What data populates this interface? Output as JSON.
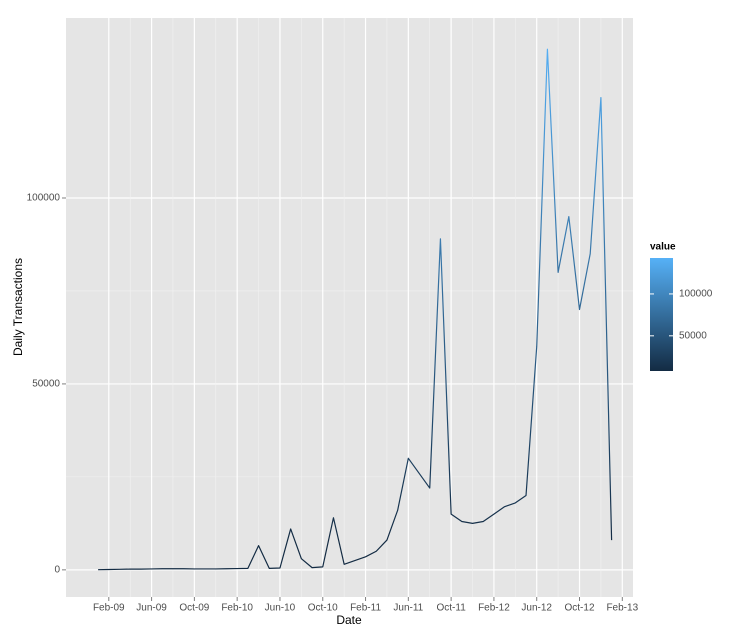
{
  "chart_data": {
    "type": "line",
    "x_label": "Date",
    "y_label": "Daily Transactions",
    "x": [
      "2009-01",
      "2009-02",
      "2009-03",
      "2009-04",
      "2009-05",
      "2009-06",
      "2009-07",
      "2009-08",
      "2009-09",
      "2009-10",
      "2009-11",
      "2009-12",
      "2010-01",
      "2010-02",
      "2010-03",
      "2010-04",
      "2010-05",
      "2010-06",
      "2010-07",
      "2010-08",
      "2010-09",
      "2010-10",
      "2010-11",
      "2010-12",
      "2011-01",
      "2011-02",
      "2011-03",
      "2011-04",
      "2011-05",
      "2011-06",
      "2011-07",
      "2011-08",
      "2011-09",
      "2011-10",
      "2011-11",
      "2011-12",
      "2012-01",
      "2012-02",
      "2012-03",
      "2012-04",
      "2012-05",
      "2012-06",
      "2012-07",
      "2012-08",
      "2012-09",
      "2012-10",
      "2012-11",
      "2012-12",
      "2013-01"
    ],
    "values": [
      50,
      100,
      150,
      200,
      200,
      250,
      300,
      300,
      300,
      250,
      250,
      250,
      300,
      350,
      400,
      6500,
      400,
      500,
      11000,
      3000,
      600,
      800,
      14000,
      1500,
      2500,
      3500,
      5000,
      8000,
      16000,
      30000,
      26000,
      22000,
      89000,
      15000,
      13000,
      12500,
      13000,
      15000,
      17000,
      18000,
      20000,
      60000,
      140000,
      80000,
      95000,
      70000,
      85000,
      127000,
      8000
    ],
    "xlim": [
      "2008-10",
      "2013-03"
    ],
    "xticks": [
      {
        "value": "2009-02",
        "label": "Feb-09"
      },
      {
        "value": "2009-06",
        "label": "Jun-09"
      },
      {
        "value": "2009-10",
        "label": "Oct-09"
      },
      {
        "value": "2010-02",
        "label": "Feb-10"
      },
      {
        "value": "2010-06",
        "label": "Jun-10"
      },
      {
        "value": "2010-10",
        "label": "Oct-10"
      },
      {
        "value": "2011-02",
        "label": "Feb-11"
      },
      {
        "value": "2011-06",
        "label": "Jun-11"
      },
      {
        "value": "2011-10",
        "label": "Oct-11"
      },
      {
        "value": "2012-02",
        "label": "Feb-12"
      },
      {
        "value": "2012-06",
        "label": "Jun-12"
      },
      {
        "value": "2012-10",
        "label": "Oct-12"
      },
      {
        "value": "2013-02",
        "label": "Feb-13"
      }
    ],
    "ylim": [
      -7300,
      148400
    ],
    "yticks": [
      0,
      50000,
      100000
    ],
    "grid": true,
    "color_scale": {
      "title": "value",
      "low": "#132B43",
      "high": "#56B1F7",
      "limits": [
        8000,
        142900
      ],
      "ticks": [
        50000,
        100000
      ]
    }
  }
}
